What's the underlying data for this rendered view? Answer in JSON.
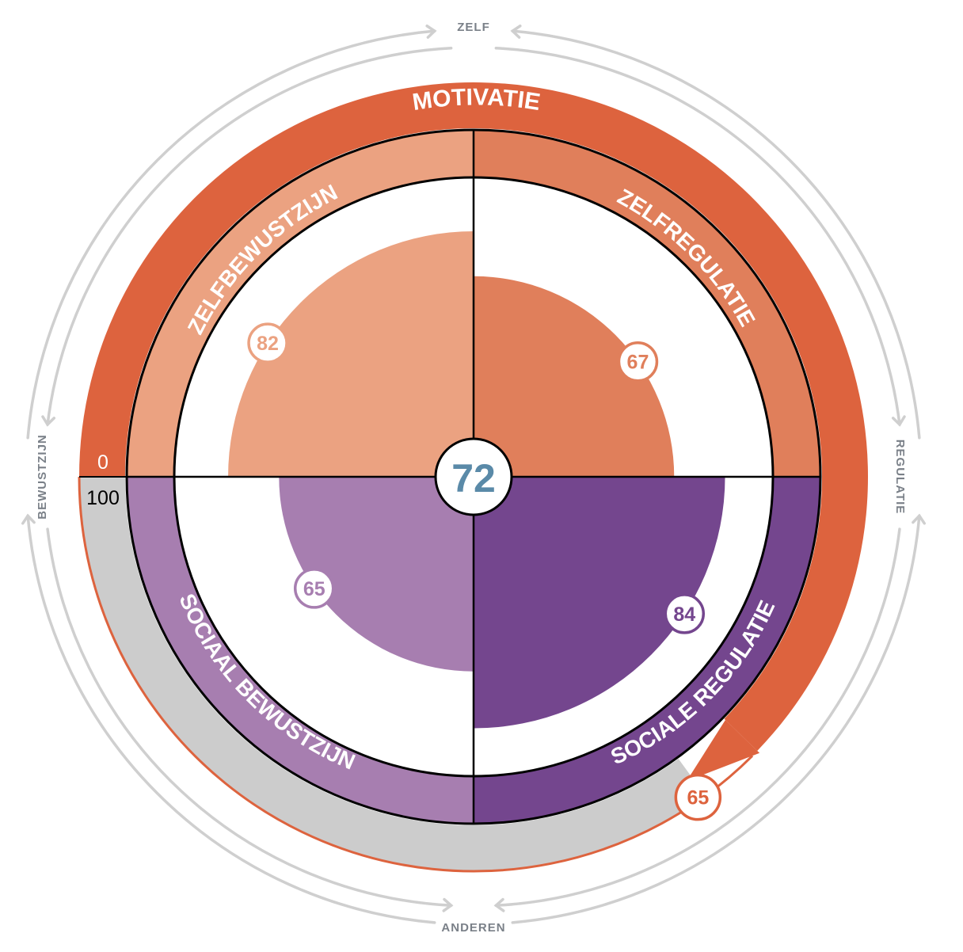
{
  "chart_data": {
    "type": "radial",
    "center_score": "72",
    "outer_axes": {
      "top": "ZELF",
      "bottom": "ANDEREN",
      "left": "BEWUSTZIJN",
      "right": "REGULATIE"
    },
    "motivation": {
      "label": "MOTIVATIE",
      "value": 65,
      "value_label": "65",
      "scale_min": "0",
      "scale_max": "100"
    },
    "quadrants": [
      {
        "key": "tl",
        "label": "ZELFBEWUSTZIJN",
        "value": 82,
        "value_label": "82",
        "color": "#eba281"
      },
      {
        "key": "tr",
        "label": "ZELFREGULATIE",
        "value": 67,
        "value_label": "67",
        "color": "#e07f5b"
      },
      {
        "key": "bl",
        "label": "SOCIAAL BEWUSTZIJN",
        "value": 65,
        "value_label": "65",
        "color": "#a77eb0"
      },
      {
        "key": "br",
        "label": "SOCIALE REGULATIE",
        "value": 84,
        "value_label": "84",
        "color": "#74468e"
      }
    ],
    "colors": {
      "motivation": "#dd633e",
      "track": "#cccccc",
      "arrows": "#cfcfcf",
      "center_text": "#5a8aa8",
      "outline": "#000000"
    }
  }
}
